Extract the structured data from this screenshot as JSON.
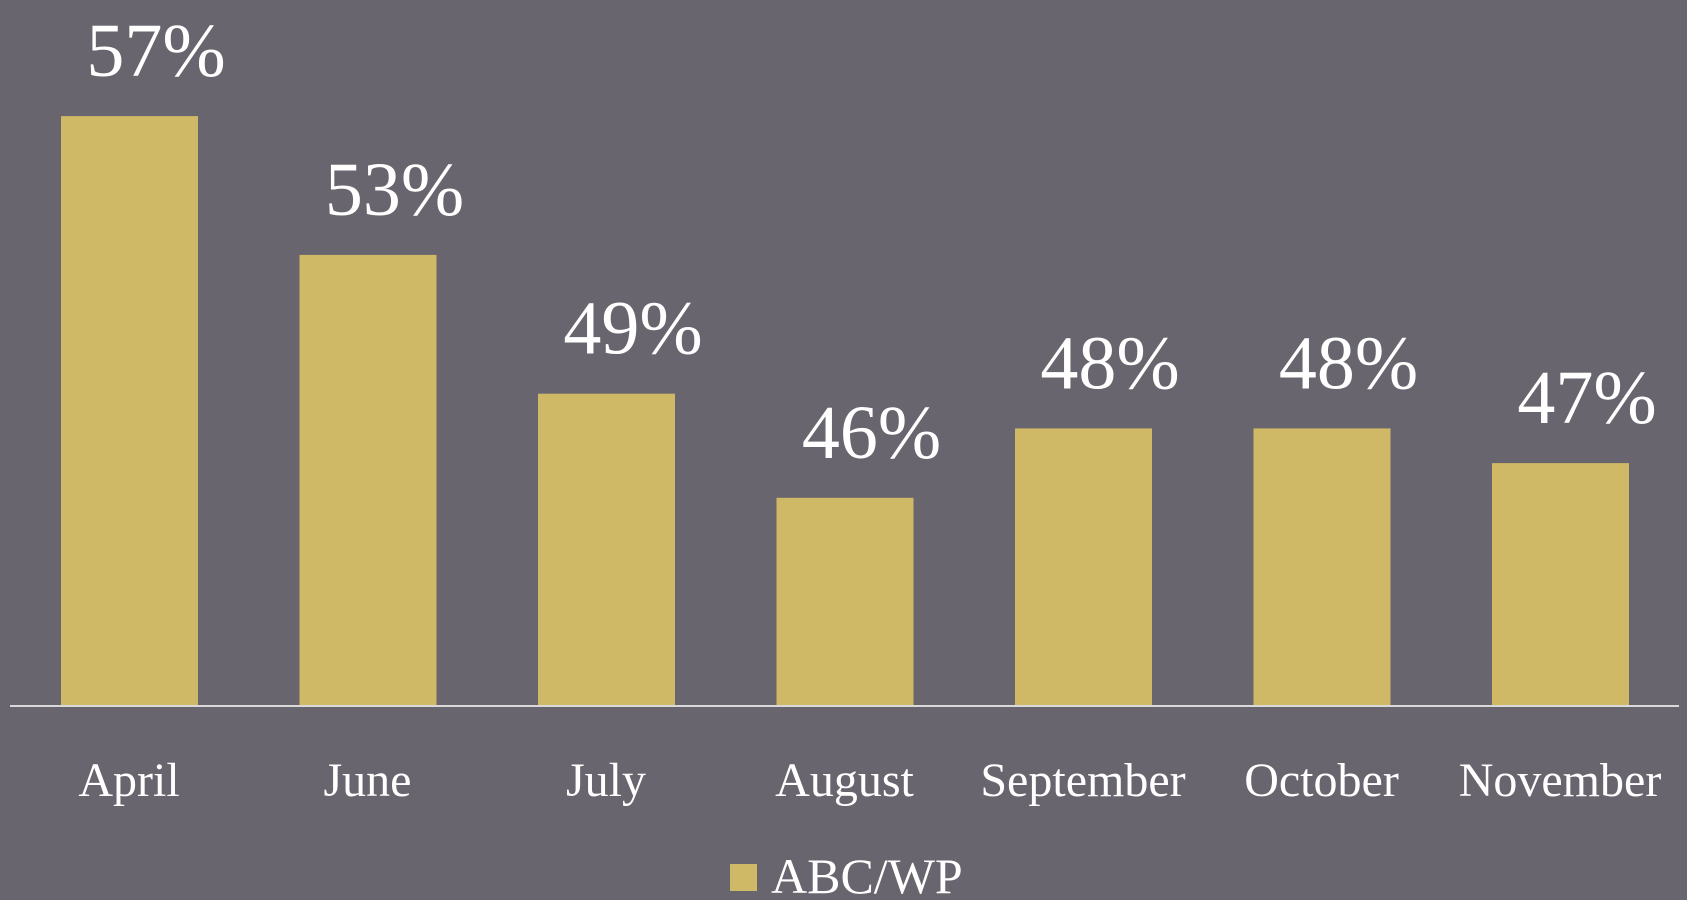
{
  "chart_data": {
    "type": "bar",
    "categories": [
      "April",
      "June",
      "July",
      "August",
      "September",
      "October",
      "November"
    ],
    "series": [
      {
        "name": "ABC/WP",
        "color": "#cfb966",
        "values": [
          57,
          53,
          49,
          46,
          48,
          48,
          47
        ],
        "value_labels": [
          "57%",
          "53%",
          "49%",
          "46%",
          "48%",
          "48%",
          "47%"
        ]
      }
    ],
    "ylim": [
      40,
      60
    ],
    "legend": "bottom"
  }
}
